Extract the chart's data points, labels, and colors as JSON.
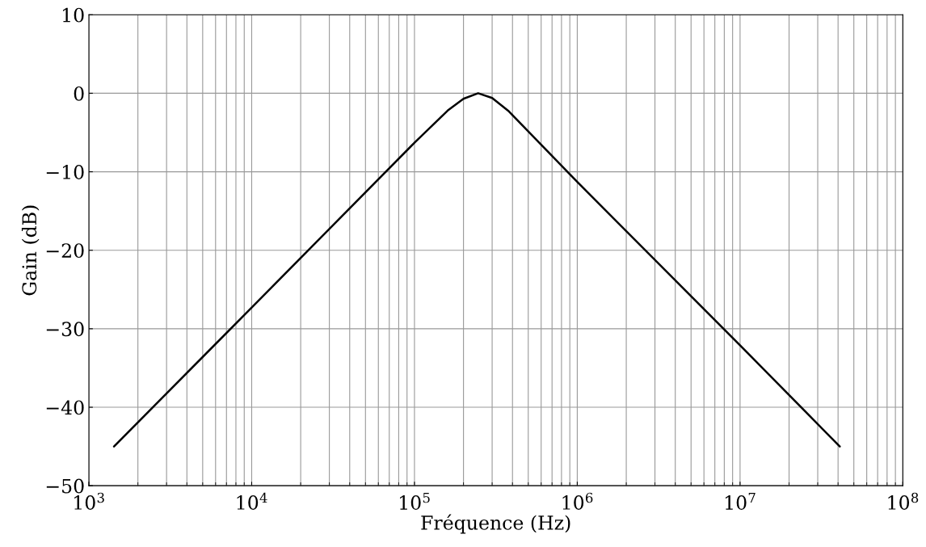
{
  "chart_data": {
    "type": "line",
    "xlabel": "Fréquence (Hz)",
    "ylabel": "Gain (dB)",
    "log": "x",
    "grid": true,
    "marker": "none",
    "line_style": "solid",
    "x": [
      1426,
      10000,
      100000,
      160000,
      200000,
      246000,
      300000,
      380000,
      1000000,
      10000000,
      41000000
    ],
    "series": [
      {
        "color": "#000000",
        "values": [
          -45,
          -27.3,
          -6.3,
          -2.2,
          -0.7,
          0,
          -0.6,
          -2.3,
          -11.3,
          -32.1,
          -45
        ]
      }
    ],
    "xlim": [
      1000,
      100000000
    ],
    "xticks": [
      {
        "value": 1000,
        "label": "10$^{3}$"
      },
      {
        "value": 10000,
        "label": "10$^{4}$"
      },
      {
        "value": 100000,
        "label": "10$^{5}$"
      },
      {
        "value": 1000000,
        "label": "10$^{6}$"
      },
      {
        "value": 10000000,
        "label": "10$^{7}$"
      },
      {
        "value": 100000000,
        "label": "10$^{8}$"
      }
    ],
    "ylim": [
      -50,
      10
    ],
    "yticks": [
      {
        "value": -50,
        "label": "−50"
      },
      {
        "value": -40,
        "label": "−40"
      },
      {
        "value": -30,
        "label": "−30"
      },
      {
        "value": -20,
        "label": "−20"
      },
      {
        "value": -10,
        "label": "−10"
      },
      0,
      10
    ]
  }
}
